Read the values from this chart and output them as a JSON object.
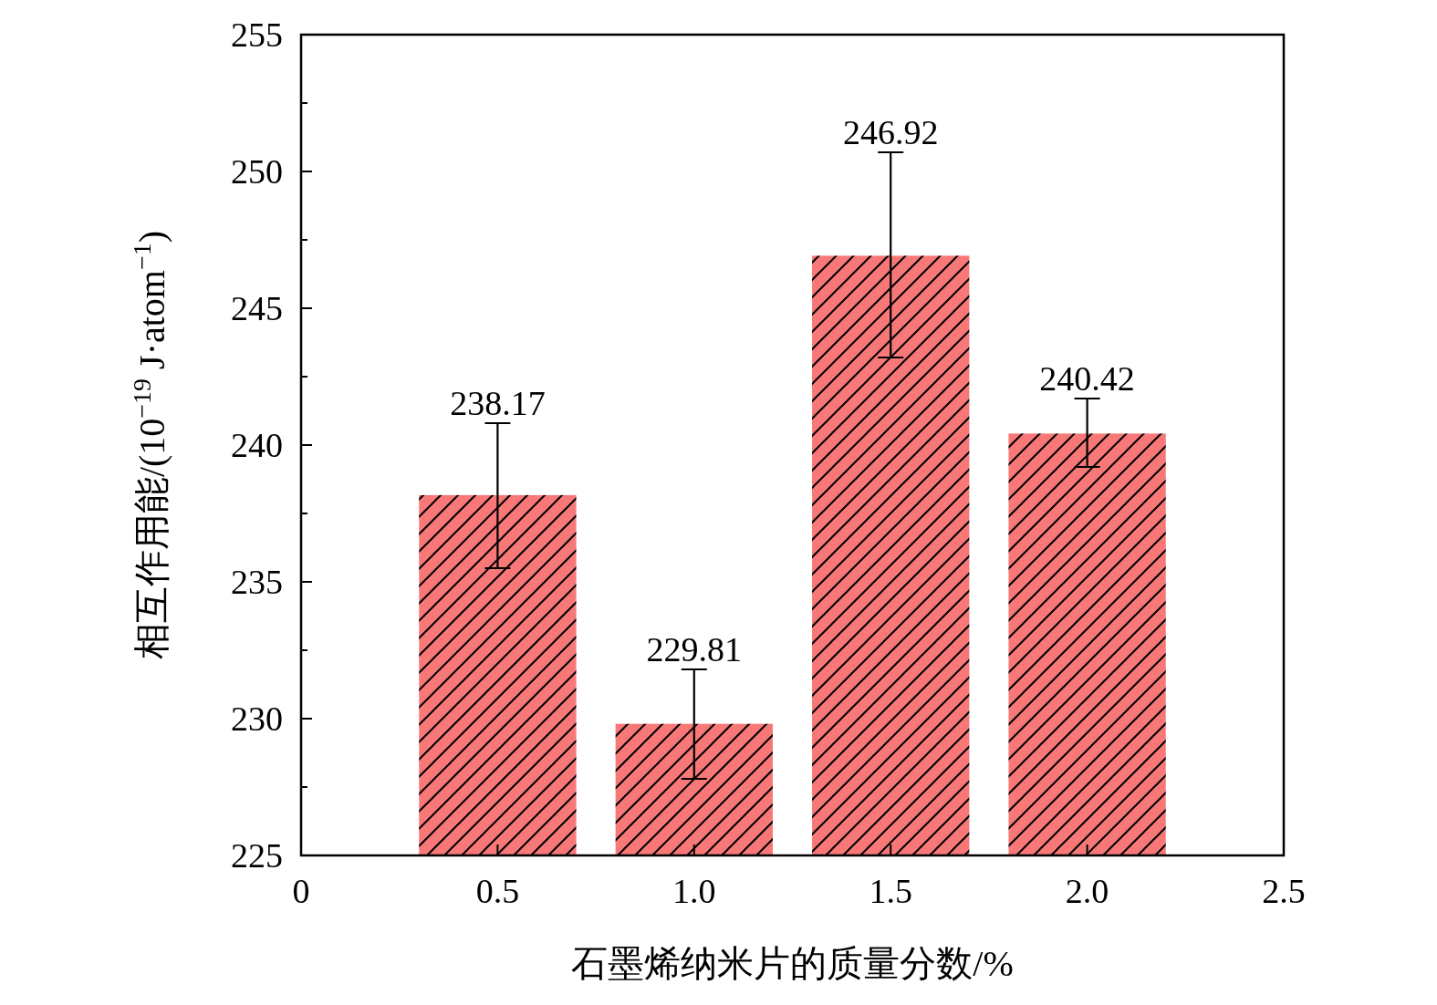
{
  "chart_data": {
    "type": "bar",
    "xlabel": "石墨烯纳米片的质量分数/%",
    "ylabel": "相互作用能/(10$^{−19}$ J·atom$^{−1}$)",
    "x": [
      0.5,
      1.0,
      1.5,
      2.0
    ],
    "values": [
      238.17,
      229.81,
      246.92,
      240.42
    ],
    "errors": [
      [
        235.5,
        240.8
      ],
      [
        227.8,
        231.8
      ],
      [
        243.2,
        250.7
      ],
      [
        239.2,
        241.7
      ]
    ],
    "color": "#f87878",
    "data_labels": true,
    "xlim": [
      0,
      2.5
    ],
    "xticks": [
      0,
      {
        "value": 0.5,
        "label": "0.5"
      },
      {
        "value": 1,
        "label": "1.0"
      },
      {
        "value": 1.5,
        "label": "1.5"
      },
      {
        "value": 2,
        "label": "2.0"
      },
      {
        "value": 2.5,
        "label": "2.5"
      }
    ],
    "ylim": [
      225,
      255
    ],
    "yticks": [
      225,
      230,
      235,
      240,
      245,
      250,
      255
    ],
    "grid": false
  }
}
